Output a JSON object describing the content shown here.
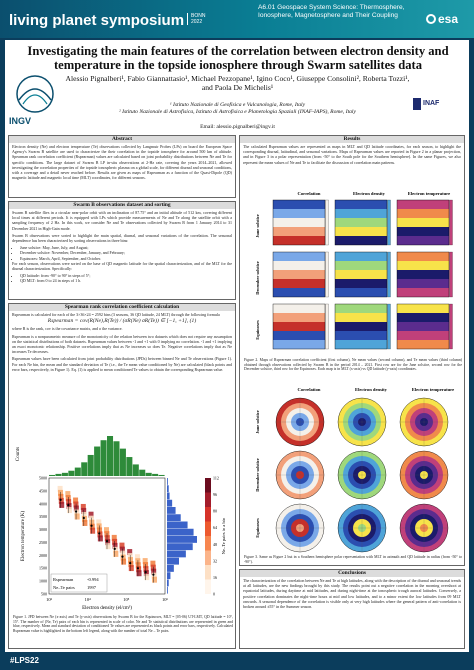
{
  "header": {
    "event": "living planet symposium",
    "event_city": "BONN",
    "event_year": "2022",
    "session": "A6.01 Geospace System Science: Thermosphere, Ionosphere, Magnetosphere and Their Coupling",
    "agency": "esa"
  },
  "poster": {
    "title": "Investigating the main features of the correlation between electron density and temperature in the topside ionosphere through Swarm satellites data",
    "authors": "Alessio Pignalberi¹, Fabio Giannattasio¹, Michael Pezzopane¹, Igino Coco¹, Giuseppe Consolini², Roberta Tozzi¹, and Paola De Michelis¹",
    "affil_1": "¹ Istituto Nazionale di Geofisica e Vulcanologia, Rome, Italy",
    "affil_2": "² Istituto Nazionale di Astrofisica, Istituto di Astrofisica e Planetologia Spaziali (INAF-IAPS), Rome, Italy",
    "email": "Email: alessio.pignalberi@ingv.it",
    "logo_left": "INGV",
    "logo_right": "INAF"
  },
  "abstract": {
    "heading": "Abstract",
    "text": "Electron density (Ne) and electron temperature (Te) observations collected by Langmuir Probes (LPs) on board the European Space Agency's Swarm B satellite are used to characterize the their correlation in the topside ionosphere for around 500 km of altitude. Spearman rank correlation coefficient (Rspearman) values are calculated based on joint probability distributions between Ne and Te for specific conditions. The large dataset of Swarm B LP in-situ observations at 2-Hz rate, covering the years 2014–2021, allowed investigating the correlation properties of the topside ionospheric plasma on a global scale, for different diurnal and seasonal conditions, with a coverage and a detail never reached before. Results are given as maps of Rspearman as a function of the Quasi-Dipole (QD) magnetic latitude and magnetic local time (MLT) coordinates, for different seasons."
  },
  "dataset": {
    "heading": "Swarm B observations dataset and sorting",
    "p1": "Swarm B satellite flies in a circular near-polar orbit with an inclination of 87.75° and an initial altitude of 512 km, covering different local times at different periods. It is equipped with LPs which provide measurements of Ne and Te along the satellite orbit with a sampling frequency of 2 Hz. In this work, we consider Ne and Te observations collected by Swarm B from 1 January 2014 to 31 December 2021 in High-Gain mode.",
    "p2": "Swarm B observations were sorted to highlight the main spatial, diurnal, and seasonal variations of the correlation. The seasonal dependence has been characterized by sorting observations in three bins:",
    "bullets": [
      "June solstice: May, June, July, and August;",
      "December solstice: November, December, January, and February;",
      "Equinoxes: March, April, September, and October."
    ],
    "p3": "For each season, observations were sorted on the base of QD magnetic latitude for the spatial characterization, and of the MLT for the diurnal characterization. Specifically:",
    "bullets2": [
      "QD latitude: from -90° to 90° in steps of 5°;",
      "QD MLT: from 0 to 24 in steps of 1 h."
    ]
  },
  "spearman": {
    "heading": "Spearman rank correlation coefficient calculation",
    "p1": "Rspearman is calculated for each of the 3×36×24 = 2592 bins (3 seasons, 36 QD latitude, 24 MLT) through the following formula",
    "formula": "Rspearman = cov(R(Ne),R(Te)) / (σR(Ne) σR(Te))  ∈ [−1, +1],",
    "eq_num": "(1)",
    "p2": "where R is the rank, cov is the covariance matrix, and σ the variance.",
    "p3": "Rspearman is a nonparametric measure of the monotonicity of the relation between two datasets which does not require any assumption on the statistical distributions of both datasets. Rspearman values between -1 and +1 with 0 implying no correlation. -1 and +1 implying an exact monotonic relationship. Positive correlations imply that as Ne increases so does Te. Negative correlations imply that as Ne increases Te decreases.",
    "p4": "Rspearman values have been calculated from joint probability distributions (JPDs) between binned Ne and Te observations (Figure 1). For each Ne bin, the mean and the standard deviation of Te (i.e., the Te mean value conditioned by Ne) are calculated (black points and error bars, respectively, in Figure 1). Eq. (1) is applied to mean conditioned Te values to obtain the corresponding Rspearman value."
  },
  "fig1": {
    "counts_label": "Counts",
    "xlabel": "Electron density (el/cm³)",
    "ylabel": "Electron temperature (K)",
    "colorbar_label": "Ne–Te pairs in a bin",
    "legend_rs": "Rspearman",
    "legend_rs_val": "-0.994",
    "legend_n": "Ne–Te pairs",
    "legend_n_val": "1997",
    "xticks": [
      "10³",
      "10⁴",
      "10⁵",
      "10⁶"
    ],
    "yticks": [
      "500",
      "1000",
      "1500",
      "2000",
      "2500",
      "3000",
      "3500",
      "4000",
      "4500",
      "5000"
    ],
    "cbticks": [
      "0",
      "16",
      "32",
      "48",
      "64",
      "80",
      "96",
      "112"
    ],
    "caption": "Figure 1. JPD between Ne (x-axis) and Te (y-axis) observations by Swarm B for the Equinoxes, MLT = [05-06) UT-LMT, QD latitude = 10°, 15°. The number of (Ne, Te) pairs of each bin is represented in scale of color. Ne and Te statistical distributions are represented in green and blue, respectively. Mean and standard deviation of conditioned Te values are represented as black points and error bars, respectively. Calculated Rspearman value is highlighted in the bottom left legend, along with the number of total Ne – Te pairs.",
    "xdist": [
      1,
      2,
      3,
      5,
      8,
      13,
      20,
      28,
      34,
      38,
      33,
      26,
      18,
      11,
      6,
      3,
      2,
      1
    ],
    "ydist": [
      1,
      2,
      4,
      8,
      14,
      22,
      30,
      35,
      31,
      24,
      16,
      10,
      6,
      3,
      2,
      1
    ],
    "conditional": [
      [
        3.3,
        4150
      ],
      [
        3.5,
        3950
      ],
      [
        3.7,
        3700
      ],
      [
        3.9,
        3450
      ],
      [
        4.1,
        3150
      ],
      [
        4.3,
        2850
      ],
      [
        4.5,
        2550
      ],
      [
        4.7,
        2250
      ],
      [
        4.9,
        1950
      ],
      [
        5.1,
        1700
      ],
      [
        5.3,
        1500
      ],
      [
        5.5,
        1350
      ],
      [
        5.7,
        1250
      ]
    ]
  },
  "results": {
    "heading": "Results",
    "text": "The calculated Rspearman values are represented as maps in MLT and QD latitude coordinates, for each season, to highlight the corresponding diurnal, latitudinal, and seasonal variations. Maps of Rspearman values are reported in Figure 2 in a planar projection, and in Figure 3 in a polar representation (from -50° to the South pole for the Southern hemisphere). In the same Figures, we also represent the mean values of Ne and Te to facilitate the discussion of correlation main patterns.",
    "col1": "Correlation",
    "col2": "Electron density",
    "col3": "Electron temperature",
    "rows": [
      "June solstice",
      "December solstice",
      "Equinoxes"
    ],
    "fig2_caption": "Figure 2. Maps of Rspearman correlation coefficient (first column), Ne mean values (second column), and Te mean values (third column) obtained through observations collected by Swarm B in the period 2014 – 2021. First row are for the June solstice, second row for the December solstice, third row for the Equinoxes. Each map is in MLT (x-axis) vs QD latitude (y-axis) coordinates.",
    "fig3_caption": "Figure 3. Same as Figure 2 but in a Southern hemisphere polar representation with MLT in azimuth and QD latitude in radius (from -50° to -90°)."
  },
  "conclusions": {
    "heading": "Conclusions",
    "text": "The characterization of the correlation between Ne and Te at high latitudes, along with the description of the diurnal and seasonal trends at all latitudes, are the new findings brought by this study. The results point out a negative correlation in the morning overshoot at equatorial latitudes, during daytime at mid latitudes, and during night-time at the ionospheric trough auroral latitudes. Conversely, a positive correlation dominates the night-time hours at mid and low latitudes, and to a minor extent the low latitudes from 09 MLT onwards. A seasonal dependence of the correlation is visible only at very high latitudes where the general pattern of anti-correlation is broken around ±55° in the Summer season."
  },
  "footer": {
    "hashtag": "#LPS22"
  }
}
